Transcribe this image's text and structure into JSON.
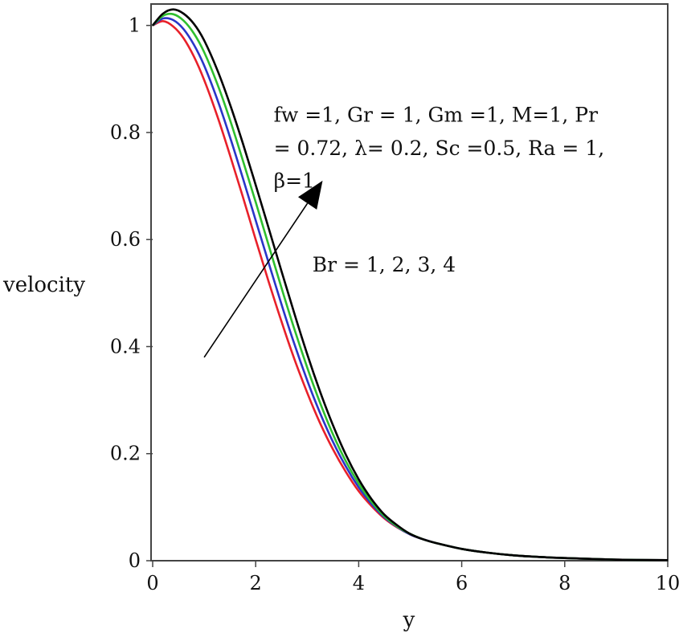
{
  "chart_data": {
    "type": "line",
    "title": "",
    "xlabel": "y",
    "ylabel": "velocity",
    "xlim": [
      0,
      10
    ],
    "ylim": [
      0,
      1.04
    ],
    "xticks": [
      0,
      2,
      4,
      6,
      8,
      10
    ],
    "xtick_labels": [
      "0",
      "2",
      "4",
      "6",
      "8",
      "10"
    ],
    "yticks": [
      0,
      0.2,
      0.4,
      0.6,
      0.8,
      1
    ],
    "ytick_labels": [
      "0",
      "0.2",
      "0.4",
      "0.6",
      "0.8",
      "1"
    ],
    "grid": false,
    "legend": "none",
    "x": [
      0,
      0.2,
      0.4,
      0.6,
      0.8,
      1,
      1.25,
      1.5,
      1.75,
      2,
      2.25,
      2.5,
      2.75,
      3,
      3.25,
      3.5,
      3.75,
      4,
      4.25,
      4.5,
      4.75,
      5,
      5.25,
      5.5,
      6,
      6.5,
      7,
      7.5,
      8,
      9,
      10
    ],
    "series": [
      {
        "color": "#e8202a",
        "values": [
          1.0,
          1.008,
          0.998,
          0.976,
          0.942,
          0.898,
          0.832,
          0.758,
          0.68,
          0.6,
          0.522,
          0.447,
          0.377,
          0.314,
          0.257,
          0.208,
          0.166,
          0.13,
          0.102,
          0.079,
          0.062,
          0.049,
          0.04,
          0.033,
          0.022,
          0.015,
          0.01,
          0.007,
          0.005,
          0.002,
          0.001
        ]
      },
      {
        "color": "#2a35c8",
        "values": [
          1.0,
          1.013,
          1.01,
          0.993,
          0.964,
          0.925,
          0.863,
          0.792,
          0.715,
          0.636,
          0.557,
          0.479,
          0.405,
          0.337,
          0.276,
          0.222,
          0.176,
          0.137,
          0.106,
          0.081,
          0.063,
          0.049,
          0.04,
          0.033,
          0.022,
          0.015,
          0.01,
          0.007,
          0.005,
          0.002,
          0.001
        ]
      },
      {
        "color": "#2fbf2f",
        "values": [
          1.0,
          1.018,
          1.021,
          1.009,
          0.985,
          0.95,
          0.892,
          0.824,
          0.748,
          0.67,
          0.59,
          0.51,
          0.433,
          0.361,
          0.295,
          0.236,
          0.186,
          0.144,
          0.11,
          0.083,
          0.064,
          0.05,
          0.04,
          0.033,
          0.022,
          0.015,
          0.01,
          0.007,
          0.005,
          0.002,
          0.001
        ]
      },
      {
        "color": "#000000",
        "values": [
          1.0,
          1.022,
          1.03,
          1.022,
          1.003,
          0.972,
          0.918,
          0.853,
          0.78,
          0.702,
          0.622,
          0.541,
          0.462,
          0.386,
          0.316,
          0.253,
          0.198,
          0.152,
          0.115,
          0.086,
          0.066,
          0.05,
          0.04,
          0.033,
          0.022,
          0.015,
          0.01,
          0.007,
          0.005,
          0.002,
          0.001
        ]
      }
    ],
    "annotations": [
      {
        "text": "fw =1, Gr = 1, Gm =1, M=1, Pr",
        "x": 2.35,
        "y": 0.82
      },
      {
        "text": "= 0.72, λ= 0.2, Sc =0.5, Ra = 1,",
        "x": 2.35,
        "y": 0.758
      },
      {
        "text": "β=1",
        "x": 2.35,
        "y": 0.697
      },
      {
        "text": "Br = 1, 2, 3, 4",
        "x": 3.1,
        "y": 0.54
      }
    ],
    "arrow": {
      "from": [
        1.0,
        0.38
      ],
      "to": [
        3.3,
        0.71
      ]
    }
  }
}
